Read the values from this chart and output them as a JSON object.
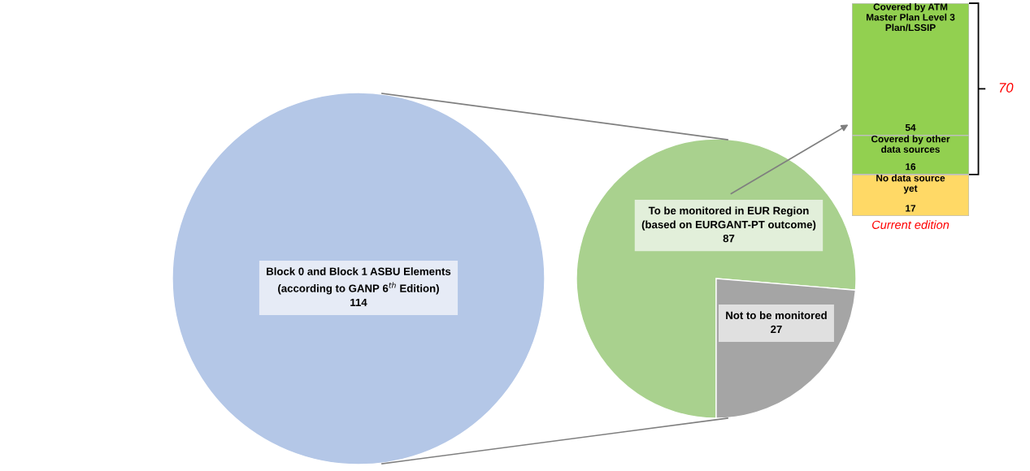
{
  "chart_data": [
    {
      "type": "pie",
      "categories": [
        "Block 0 and Block 1 ASBU Elements\n(according to GANP 6$^{th}$ Edition)"
      ],
      "values": [
        114
      ],
      "colors": [
        "#b4c7e7"
      ],
      "data_labels": true
    },
    {
      "type": "pie",
      "categories": [
        "To be monitored in EUR Region\n(based on EURGANT-PT outcome)",
        "Not to be monitored"
      ],
      "values": [
        87,
        27
      ],
      "colors": [
        "#a9d18e",
        "#a5a5a5"
      ],
      "data_labels": true
    },
    {
      "type": "bar",
      "stacked": true,
      "categories": [
        null
      ],
      "xlabel": "Current edition",
      "data_labels": true,
      "annotations": [
        "70"
      ],
      "series": [
        {
          "name": "No data source\nyet",
          "color": "#ffd966",
          "values": [
            17
          ]
        },
        {
          "name": "Covered by other\ndata sources",
          "color": "#92d050",
          "values": [
            16
          ]
        },
        {
          "name": "Covered by ATM\nMaster Plan Level 3\nPlan/LSSIP",
          "color": "#92d050",
          "values": [
            54
          ]
        }
      ]
    }
  ]
}
